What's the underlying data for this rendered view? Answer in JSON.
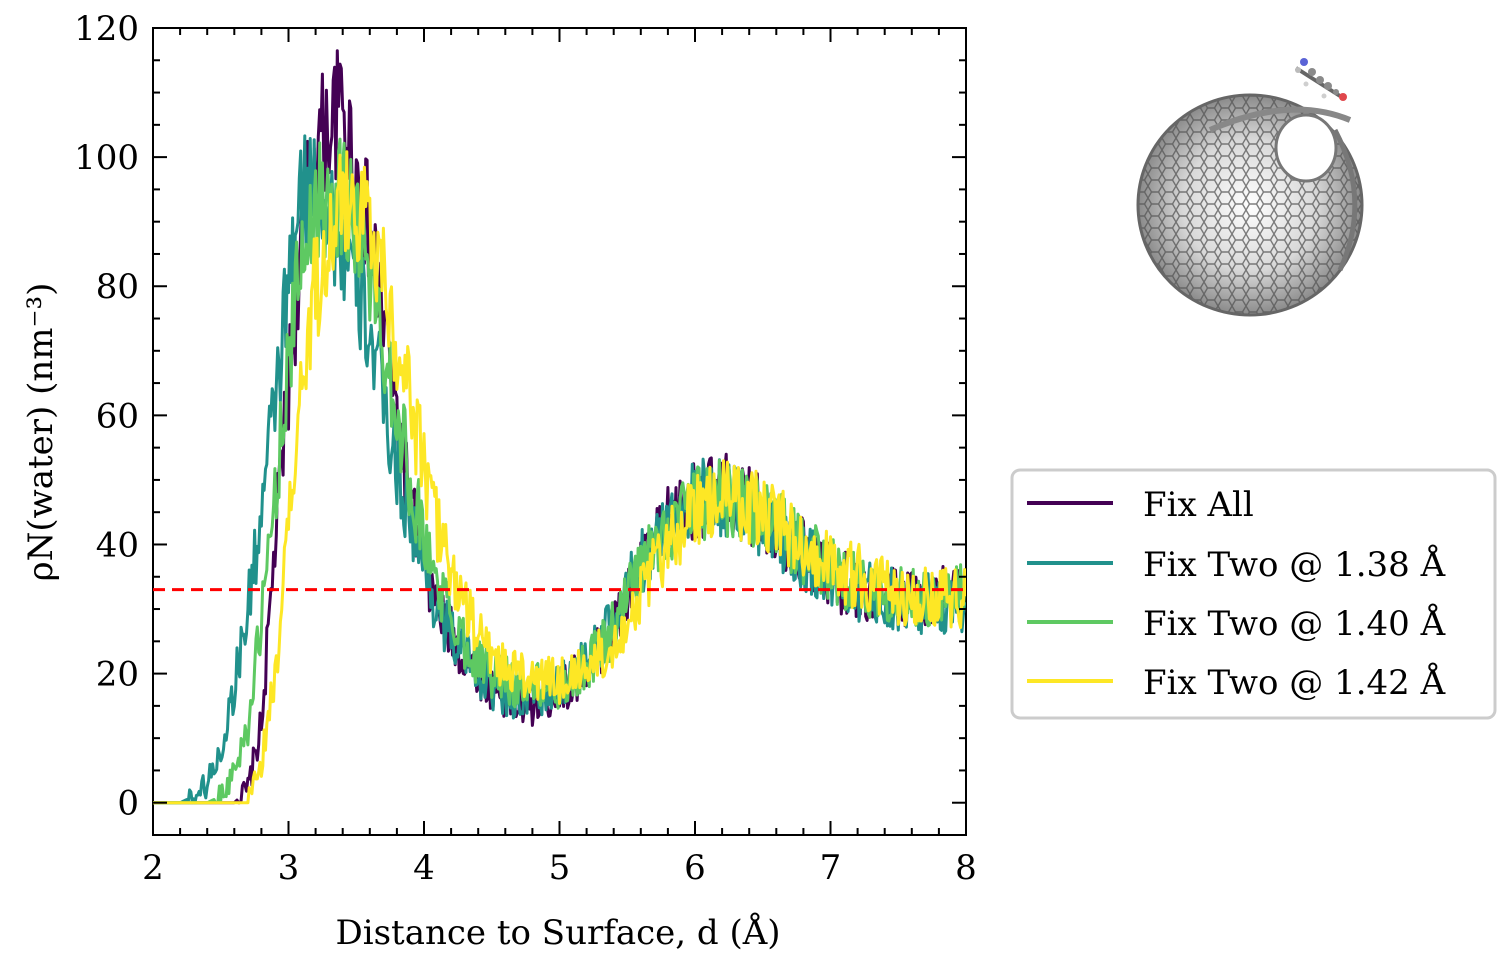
{
  "chart_data": {
    "type": "line",
    "xlabel": "Distance to Surface, d (Å)",
    "ylabel": "ρN(water) (nm⁻³)",
    "xlim": [
      2,
      8
    ],
    "ylim": [
      -5,
      120
    ],
    "xticks": [
      "2",
      "3",
      "4",
      "5",
      "6",
      "7",
      "8"
    ],
    "yticks": [
      "0",
      "20",
      "40",
      "60",
      "80",
      "100",
      "120"
    ],
    "grid": false,
    "legend_position": "right, outside plot",
    "reference_line": {
      "y": 33,
      "style": "dashed",
      "color": "#ff0000"
    },
    "series": [
      {
        "name": "Fix All",
        "color": "#440154",
        "x": [
          2.0,
          2.6,
          2.7,
          2.8,
          2.9,
          3.0,
          3.1,
          3.2,
          3.3,
          3.4,
          3.5,
          3.6,
          3.7,
          3.8,
          3.9,
          4.0,
          4.1,
          4.2,
          4.3,
          4.4,
          4.5,
          4.6,
          4.7,
          4.8,
          4.9,
          5.0,
          5.2,
          5.4,
          5.6,
          5.8,
          6.0,
          6.2,
          6.4,
          6.6,
          6.8,
          7.0,
          7.2,
          7.4,
          7.6,
          7.8,
          8.0
        ],
        "y": [
          0,
          0,
          2,
          12,
          40,
          65,
          88,
          102,
          105,
          108,
          97,
          88,
          75,
          60,
          46,
          36,
          30,
          26,
          22,
          20,
          18,
          16,
          15,
          15,
          16,
          17,
          21,
          27,
          36,
          43,
          47,
          48,
          46,
          43,
          39,
          35,
          33,
          32,
          32,
          32,
          32
        ]
      },
      {
        "name": "Fix Two @ 1.38 Å",
        "color": "#21918c",
        "x": [
          2.0,
          2.2,
          2.3,
          2.4,
          2.5,
          2.6,
          2.7,
          2.8,
          2.9,
          3.0,
          3.1,
          3.2,
          3.3,
          3.4,
          3.5,
          3.6,
          3.7,
          3.8,
          3.9,
          4.0,
          4.1,
          4.2,
          4.3,
          4.4,
          4.5,
          4.6,
          4.7,
          4.8,
          4.9,
          5.0,
          5.2,
          5.4,
          5.6,
          5.8,
          6.0,
          6.2,
          6.4,
          6.6,
          6.8,
          7.0,
          7.2,
          7.4,
          7.6,
          7.8,
          8.0
        ],
        "y": [
          0,
          0,
          1,
          3,
          8,
          18,
          30,
          45,
          62,
          80,
          93,
          97,
          92,
          85,
          80,
          73,
          62,
          52,
          44,
          36,
          30,
          26,
          23,
          20,
          18,
          17,
          16,
          16,
          17,
          18,
          22,
          28,
          37,
          44,
          47,
          47,
          45,
          42,
          38,
          35,
          33,
          32,
          31,
          31,
          31
        ]
      },
      {
        "name": "Fix Two @ 1.40 Å",
        "color": "#5ec962",
        "x": [
          2.0,
          2.4,
          2.5,
          2.6,
          2.7,
          2.8,
          2.9,
          3.0,
          3.1,
          3.2,
          3.3,
          3.4,
          3.5,
          3.6,
          3.7,
          3.8,
          3.9,
          4.0,
          4.1,
          4.2,
          4.3,
          4.4,
          4.5,
          4.6,
          4.7,
          4.8,
          4.9,
          5.0,
          5.2,
          5.4,
          5.6,
          5.8,
          6.0,
          6.2,
          6.4,
          6.6,
          6.8,
          7.0,
          7.2,
          7.4,
          7.6,
          7.8,
          8.0
        ],
        "y": [
          0,
          0,
          1,
          5,
          12,
          28,
          48,
          68,
          85,
          93,
          95,
          94,
          90,
          82,
          72,
          61,
          50,
          41,
          34,
          29,
          25,
          22,
          20,
          19,
          18,
          18,
          18,
          18,
          21,
          27,
          36,
          43,
          46,
          47,
          46,
          43,
          39,
          36,
          34,
          33,
          32,
          32,
          32
        ]
      },
      {
        "name": "Fix Two @ 1.42 Å",
        "color": "#fde725",
        "x": [
          2.0,
          2.7,
          2.8,
          2.9,
          3.0,
          3.1,
          3.2,
          3.3,
          3.4,
          3.5,
          3.6,
          3.7,
          3.8,
          3.9,
          4.0,
          4.1,
          4.2,
          4.3,
          4.4,
          4.5,
          4.6,
          4.7,
          4.8,
          4.9,
          5.0,
          5.2,
          5.4,
          5.6,
          5.8,
          6.0,
          6.2,
          6.4,
          6.6,
          6.8,
          7.0,
          7.2,
          7.4,
          7.6,
          7.8,
          8.0
        ],
        "y": [
          0,
          0,
          6,
          20,
          42,
          65,
          80,
          88,
          92,
          94,
          90,
          82,
          72,
          62,
          52,
          43,
          36,
          30,
          26,
          23,
          21,
          20,
          19,
          19,
          19,
          21,
          25,
          32,
          40,
          45,
          47,
          46,
          44,
          40,
          37,
          35,
          33,
          32,
          32,
          32
        ]
      }
    ]
  }
}
